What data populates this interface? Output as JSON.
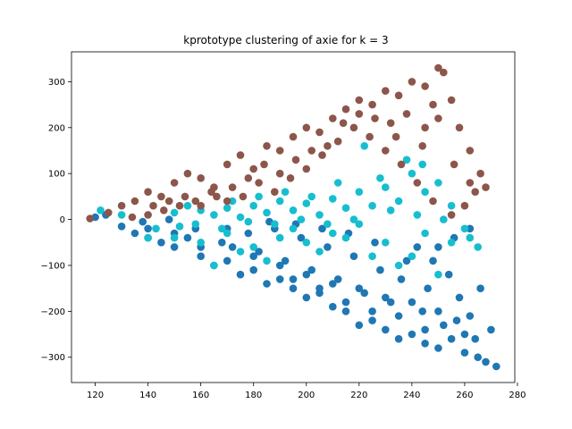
{
  "chart_data": {
    "type": "scatter",
    "title": "kprototype clustering of axie for k = 3",
    "xlabel": "",
    "ylabel": "",
    "xlim": [
      111,
      279
    ],
    "ylim": [
      -355,
      365
    ],
    "xticks": [
      120,
      140,
      160,
      180,
      200,
      220,
      240,
      260,
      280
    ],
    "yticks": [
      -300,
      -200,
      -100,
      0,
      100,
      200,
      300
    ],
    "grid": false,
    "legend": "none",
    "series": [
      {
        "color": "#1f77b4",
        "points": [
          [
            120,
            5
          ],
          [
            124,
            10
          ],
          [
            130,
            -15
          ],
          [
            135,
            -30
          ],
          [
            140,
            -20
          ],
          [
            145,
            -50
          ],
          [
            150,
            -60
          ],
          [
            155,
            -40
          ],
          [
            160,
            -80
          ],
          [
            165,
            -100
          ],
          [
            170,
            -90
          ],
          [
            175,
            -120
          ],
          [
            180,
            -110
          ],
          [
            185,
            -140
          ],
          [
            190,
            -130
          ],
          [
            195,
            -150
          ],
          [
            200,
            -170
          ],
          [
            205,
            -160
          ],
          [
            210,
            -190
          ],
          [
            215,
            -200
          ],
          [
            220,
            -230
          ],
          [
            225,
            -220
          ],
          [
            230,
            -240
          ],
          [
            235,
            -260
          ],
          [
            240,
            -250
          ],
          [
            245,
            -270
          ],
          [
            250,
            -280
          ],
          [
            255,
            -260
          ],
          [
            260,
            -290
          ],
          [
            265,
            -300
          ],
          [
            268,
            -310
          ],
          [
            272,
            -320
          ],
          [
            270,
            -240
          ],
          [
            262,
            -210
          ],
          [
            258,
            -170
          ],
          [
            266,
            -150
          ],
          [
            254,
            -120
          ],
          [
            248,
            -90
          ],
          [
            242,
            -60
          ],
          [
            236,
            -130
          ],
          [
            228,
            -110
          ],
          [
            218,
            -80
          ],
          [
            208,
            -60
          ],
          [
            198,
            -40
          ],
          [
            188,
            -20
          ],
          [
            178,
            -30
          ],
          [
            168,
            -50
          ],
          [
            158,
            -20
          ],
          [
            148,
            0
          ],
          [
            138,
            -5
          ],
          [
            232,
            -180
          ],
          [
            222,
            -160
          ],
          [
            212,
            -130
          ],
          [
            202,
            -110
          ],
          [
            192,
            -90
          ],
          [
            182,
            -70
          ],
          [
            172,
            -60
          ],
          [
            244,
            -200
          ],
          [
            252,
            -230
          ],
          [
            260,
            -250
          ],
          [
            246,
            -150
          ],
          [
            238,
            -90
          ],
          [
            226,
            -50
          ],
          [
            216,
            -30
          ],
          [
            206,
            -20
          ],
          [
            196,
            -10
          ],
          [
            186,
            -5
          ],
          [
            250,
            -60
          ],
          [
            256,
            -40
          ],
          [
            262,
            -20
          ],
          [
            140,
            -40
          ],
          [
            150,
            -30
          ],
          [
            160,
            -60
          ],
          [
            170,
            -20
          ],
          [
            180,
            -80
          ],
          [
            190,
            -100
          ],
          [
            200,
            -120
          ],
          [
            210,
            -140
          ],
          [
            220,
            -150
          ],
          [
            230,
            -170
          ],
          [
            240,
            -180
          ],
          [
            250,
            -200
          ],
          [
            257,
            -220
          ],
          [
            264,
            -260
          ],
          [
            245,
            -240
          ],
          [
            235,
            -210
          ],
          [
            225,
            -200
          ],
          [
            215,
            -180
          ],
          [
            205,
            -150
          ],
          [
            195,
            -130
          ]
        ]
      },
      {
        "color": "#17becf",
        "points": [
          [
            122,
            20
          ],
          [
            130,
            10
          ],
          [
            140,
            -40
          ],
          [
            150,
            15
          ],
          [
            155,
            30
          ],
          [
            160,
            20
          ],
          [
            165,
            10
          ],
          [
            170,
            25
          ],
          [
            175,
            5
          ],
          [
            180,
            30
          ],
          [
            185,
            15
          ],
          [
            190,
            40
          ],
          [
            195,
            20
          ],
          [
            200,
            35
          ],
          [
            205,
            10
          ],
          [
            210,
            45
          ],
          [
            215,
            25
          ],
          [
            220,
            60
          ],
          [
            225,
            30
          ],
          [
            230,
            70
          ],
          [
            235,
            40
          ],
          [
            240,
            100
          ],
          [
            245,
            60
          ],
          [
            250,
            80
          ],
          [
            255,
            30
          ],
          [
            260,
            -20
          ],
          [
            265,
            -60
          ],
          [
            250,
            -120
          ],
          [
            240,
            -80
          ],
          [
            230,
            -50
          ],
          [
            220,
            -10
          ],
          [
            210,
            -30
          ],
          [
            200,
            -50
          ],
          [
            190,
            -40
          ],
          [
            180,
            -60
          ],
          [
            170,
            -30
          ],
          [
            160,
            -50
          ],
          [
            150,
            -40
          ],
          [
            165,
            -100
          ],
          [
            175,
            -70
          ],
          [
            185,
            -90
          ],
          [
            195,
            -20
          ],
          [
            205,
            -70
          ],
          [
            215,
            -40
          ],
          [
            225,
            -80
          ],
          [
            235,
            -100
          ],
          [
            245,
            -30
          ],
          [
            255,
            -50
          ],
          [
            238,
            130
          ],
          [
            244,
            120
          ],
          [
            222,
            160
          ],
          [
            228,
            90
          ],
          [
            232,
            20
          ],
          [
            218,
            0
          ],
          [
            208,
            -10
          ],
          [
            198,
            0
          ],
          [
            188,
            -10
          ],
          [
            178,
            -5
          ],
          [
            168,
            -20
          ],
          [
            158,
            -10
          ],
          [
            143,
            -20
          ],
          [
            152,
            -15
          ],
          [
            172,
            40
          ],
          [
            182,
            50
          ],
          [
            192,
            60
          ],
          [
            202,
            50
          ],
          [
            212,
            80
          ],
          [
            242,
            10
          ],
          [
            252,
            0
          ],
          [
            262,
            -40
          ]
        ]
      },
      {
        "color": "#8c564b",
        "points": [
          [
            118,
            2
          ],
          [
            125,
            15
          ],
          [
            130,
            30
          ],
          [
            135,
            40
          ],
          [
            140,
            60
          ],
          [
            145,
            50
          ],
          [
            150,
            80
          ],
          [
            155,
            100
          ],
          [
            160,
            90
          ],
          [
            165,
            70
          ],
          [
            170,
            120
          ],
          [
            175,
            140
          ],
          [
            180,
            110
          ],
          [
            185,
            160
          ],
          [
            190,
            150
          ],
          [
            195,
            180
          ],
          [
            200,
            200
          ],
          [
            205,
            190
          ],
          [
            210,
            220
          ],
          [
            215,
            240
          ],
          [
            220,
            260
          ],
          [
            225,
            250
          ],
          [
            230,
            280
          ],
          [
            235,
            270
          ],
          [
            240,
            300
          ],
          [
            245,
            290
          ],
          [
            250,
            330
          ],
          [
            252,
            320
          ],
          [
            255,
            260
          ],
          [
            258,
            200
          ],
          [
            262,
            150
          ],
          [
            266,
            100
          ],
          [
            264,
            60
          ],
          [
            260,
            30
          ],
          [
            255,
            10
          ],
          [
            248,
            40
          ],
          [
            242,
            80
          ],
          [
            236,
            120
          ],
          [
            230,
            150
          ],
          [
            224,
            180
          ],
          [
            218,
            200
          ],
          [
            212,
            170
          ],
          [
            206,
            140
          ],
          [
            200,
            110
          ],
          [
            194,
            90
          ],
          [
            188,
            60
          ],
          [
            182,
            80
          ],
          [
            176,
            50
          ],
          [
            170,
            40
          ],
          [
            164,
            60
          ],
          [
            158,
            40
          ],
          [
            152,
            30
          ],
          [
            146,
            20
          ],
          [
            140,
            10
          ],
          [
            134,
            5
          ],
          [
            245,
            200
          ],
          [
            250,
            220
          ],
          [
            248,
            250
          ],
          [
            238,
            230
          ],
          [
            232,
            210
          ],
          [
            226,
            220
          ],
          [
            220,
            230
          ],
          [
            214,
            210
          ],
          [
            208,
            160
          ],
          [
            202,
            150
          ],
          [
            196,
            130
          ],
          [
            190,
            100
          ],
          [
            184,
            120
          ],
          [
            178,
            90
          ],
          [
            172,
            70
          ],
          [
            166,
            50
          ],
          [
            160,
            30
          ],
          [
            154,
            50
          ],
          [
            148,
            40
          ],
          [
            142,
            30
          ],
          [
            256,
            120
          ],
          [
            262,
            80
          ],
          [
            268,
            70
          ],
          [
            244,
            160
          ],
          [
            234,
            180
          ]
        ]
      }
    ]
  }
}
